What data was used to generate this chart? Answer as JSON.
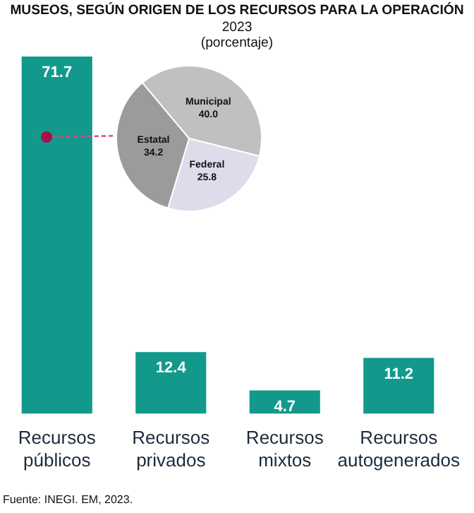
{
  "chart_data": [
    {
      "type": "bar",
      "title": "MUSEOS, SEGÚN ORIGEN DE LOS RECURSOS PARA LA OPERACIÓN",
      "subtitle": "2023\n(porcentaje)",
      "categories": [
        "Recursos públicos",
        "Recursos privados",
        "Recursos mixtos",
        "Recursos autogenerados"
      ],
      "values": [
        71.7,
        12.4,
        4.7,
        11.2
      ],
      "color": "#12998c",
      "data_labels": true,
      "grid": false,
      "legend": false,
      "annotations": [
        "Fuente: INEGI. EM, 2023."
      ]
    },
    {
      "type": "pie",
      "categories": [
        "Municipal",
        "Federal",
        "Estatal"
      ],
      "values": [
        40.0,
        25.8,
        34.2
      ],
      "colors": [
        "#c0c0c0",
        "#dcdcea",
        "#9b9b9b"
      ],
      "value_labels": [
        "40.0",
        "25.8",
        "34.2"
      ],
      "legend": false
    }
  ]
}
